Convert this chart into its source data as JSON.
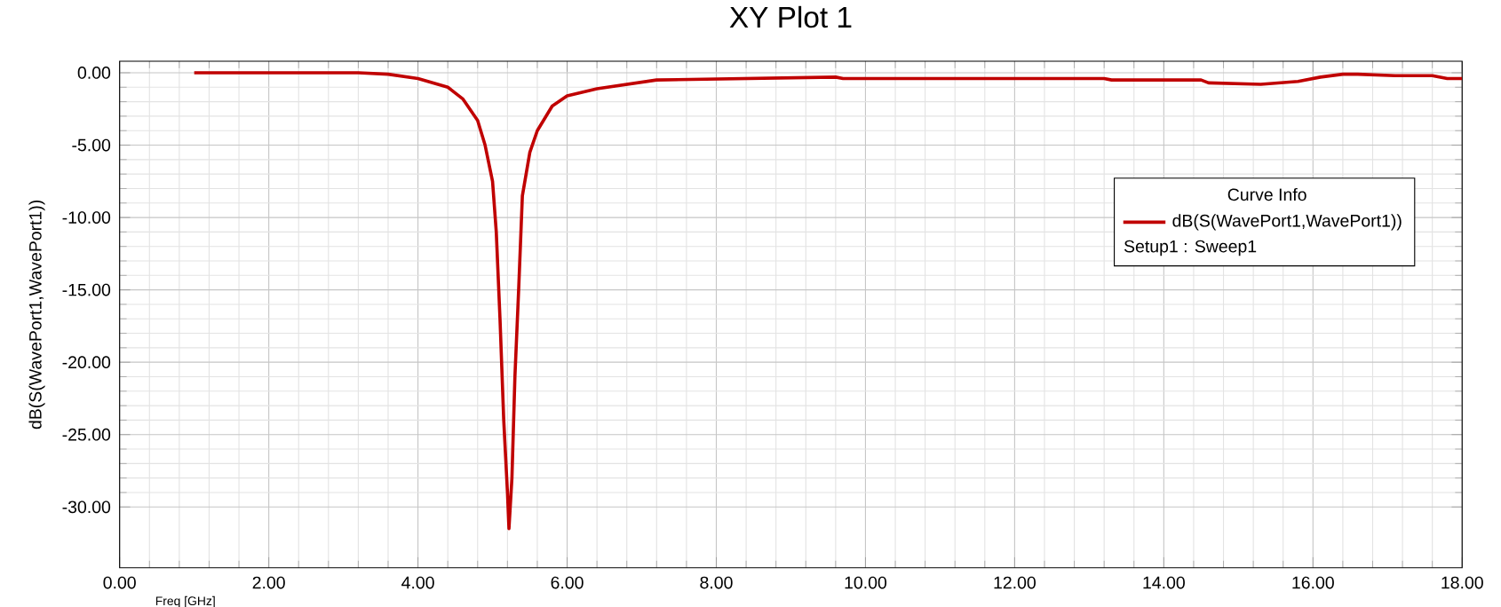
{
  "chart_data": {
    "type": "line",
    "title": "XY Plot 1",
    "xlabel": "Freq [GHz]",
    "ylabel": "dB(S(WavePort1,WavePort1))",
    "legend_title": "Curve Info",
    "legend": "right",
    "grid": true,
    "line_style": "solid",
    "marker": "none",
    "xlim": [
      0,
      18
    ],
    "xticks": [
      {
        "value": 0,
        "label": "0.00"
      },
      {
        "value": 2,
        "label": "2.00"
      },
      {
        "value": 4,
        "label": "4.00"
      },
      {
        "value": 6,
        "label": "6.00"
      },
      {
        "value": 8,
        "label": "8.00"
      },
      {
        "value": 10,
        "label": "10.00"
      },
      {
        "value": 12,
        "label": "12.00"
      },
      {
        "value": 14,
        "label": "14.00"
      },
      {
        "value": 16,
        "label": "16.00"
      },
      {
        "value": 18,
        "label": "18.00"
      }
    ],
    "ylim": [
      -34.2,
      0.8
    ],
    "yticks": [
      {
        "value": 0,
        "label": "0.00"
      },
      {
        "value": -5,
        "label": "-5.00"
      },
      {
        "value": -10,
        "label": "-10.00"
      },
      {
        "value": -15,
        "label": "-15.00"
      },
      {
        "value": -20,
        "label": "-20.00"
      },
      {
        "value": -25,
        "label": "-25.00"
      },
      {
        "value": -30,
        "label": "-30.00"
      }
    ],
    "annotations": [
      "Setup1 : Sweep1"
    ],
    "x": [
      1.0,
      3.2,
      3.6,
      4.0,
      4.4,
      4.6,
      4.8,
      4.9,
      5.0,
      5.05,
      5.1,
      5.15,
      5.2,
      5.22,
      5.26,
      5.3,
      5.35,
      5.4,
      5.5,
      5.6,
      5.8,
      6.0,
      6.4,
      6.8,
      7.2,
      9.6,
      9.7,
      13.2,
      13.3,
      14.5,
      14.6,
      15.3,
      15.8,
      16.1,
      16.4,
      16.6,
      17.1,
      17.6,
      17.8,
      18.0
    ],
    "series": [
      {
        "name": "dB(S(WavePort1,WavePort1))",
        "color": "#c00000",
        "values": [
          0.0,
          0.0,
          -0.1,
          -0.4,
          -1.0,
          -1.8,
          -3.3,
          -5.0,
          -7.5,
          -11.0,
          -17.0,
          -24.0,
          -29.0,
          -31.5,
          -28.0,
          -21.0,
          -15.0,
          -8.5,
          -5.5,
          -4.0,
          -2.3,
          -1.6,
          -1.1,
          -0.8,
          -0.5,
          -0.3,
          -0.4,
          -0.4,
          -0.5,
          -0.5,
          -0.7,
          -0.8,
          -0.6,
          -0.3,
          -0.1,
          -0.1,
          -0.2,
          -0.2,
          -0.4,
          -0.4
        ]
      }
    ]
  }
}
